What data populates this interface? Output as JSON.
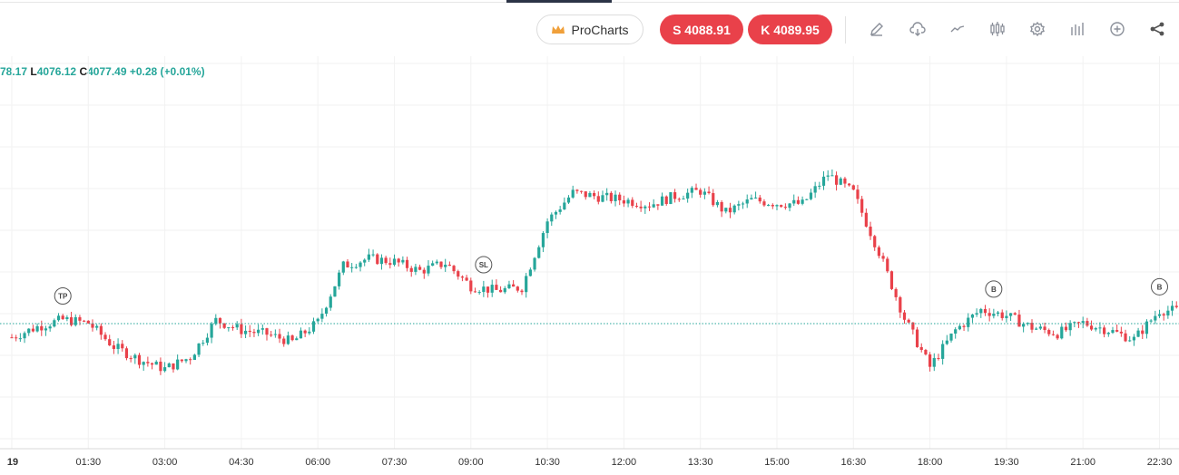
{
  "header": {
    "procharts_label": "ProCharts",
    "sell_label": "S 4088.91",
    "buy_label": "K 4089.95",
    "sell_color": "#e9414a",
    "buy_color": "#e9414a"
  },
  "toolbar": {
    "icons": [
      "pencil-icon",
      "cloud-icon",
      "line-chart-icon",
      "candles-icon",
      "gear-icon",
      "bars-icon",
      "plus-circle-icon",
      "share-icon"
    ]
  },
  "ohlc": {
    "high_partial": "78.17",
    "low_key": "L",
    "low_value": "4076.12",
    "close_key": "C",
    "close_value": "4077.49",
    "change": "+0.28 (+0.01%)"
  },
  "chart_data": {
    "type": "candlestick",
    "x_ticks": [
      "19",
      "01:30",
      "03:00",
      "04:30",
      "06:00",
      "07:30",
      "09:00",
      "10:30",
      "12:00",
      "13:30",
      "15:00",
      "16:30",
      "18:00",
      "19:30",
      "21:00",
      "22:30"
    ],
    "up_color": "#26a69a",
    "down_color": "#e9414a",
    "grid": true,
    "reference_line": {
      "style": "dotted",
      "color": "#26a69a",
      "value": 4077.49
    },
    "markers": [
      {
        "label": "TP",
        "at": "01:00"
      },
      {
        "label": "SL",
        "at": "09:15"
      },
      {
        "label": "B",
        "at": "19:15"
      },
      {
        "label": "B",
        "at": "22:30"
      }
    ],
    "close_path": [
      [
        "00:00",
        4075.4
      ],
      [
        "00:30",
        4077.0
      ],
      [
        "01:00",
        4078.1
      ],
      [
        "01:30",
        4077.6
      ],
      [
        "02:00",
        4074.0
      ],
      [
        "02:30",
        4072.0
      ],
      [
        "03:00",
        4070.6
      ],
      [
        "03:30",
        4072.4
      ],
      [
        "04:00",
        4078.0
      ],
      [
        "04:30",
        4076.5
      ],
      [
        "05:00",
        4075.9
      ],
      [
        "05:30",
        4074.7
      ],
      [
        "06:00",
        4077.7
      ],
      [
        "06:30",
        4086.3
      ],
      [
        "07:00",
        4087.4
      ],
      [
        "07:30",
        4086.9
      ],
      [
        "08:00",
        4085.5
      ],
      [
        "08:30",
        4086.7
      ],
      [
        "09:00",
        4083.2
      ],
      [
        "09:30",
        4082.5
      ],
      [
        "10:00",
        4083.0
      ],
      [
        "10:30",
        4093.1
      ],
      [
        "11:00",
        4097.4
      ],
      [
        "11:30",
        4096.8
      ],
      [
        "12:00",
        4096.3
      ],
      [
        "12:30",
        4095.6
      ],
      [
        "13:00",
        4096.9
      ],
      [
        "13:30",
        4097.7
      ],
      [
        "14:00",
        4094.4
      ],
      [
        "14:30",
        4096.3
      ],
      [
        "15:00",
        4095.8
      ],
      [
        "15:30",
        4095.7
      ],
      [
        "16:00",
        4100.2
      ],
      [
        "16:30",
        4097.4
      ],
      [
        "17:00",
        4088.4
      ],
      [
        "17:30",
        4078.3
      ],
      [
        "18:00",
        4070.9
      ],
      [
        "18:30",
        4076.5
      ],
      [
        "19:00",
        4079.6
      ],
      [
        "19:30",
        4078.7
      ],
      [
        "20:00",
        4076.9
      ],
      [
        "20:30",
        4076.0
      ],
      [
        "21:00",
        4077.6
      ],
      [
        "21:30",
        4076.5
      ],
      [
        "22:00",
        4075.1
      ],
      [
        "22:30",
        4079.5
      ]
    ]
  }
}
